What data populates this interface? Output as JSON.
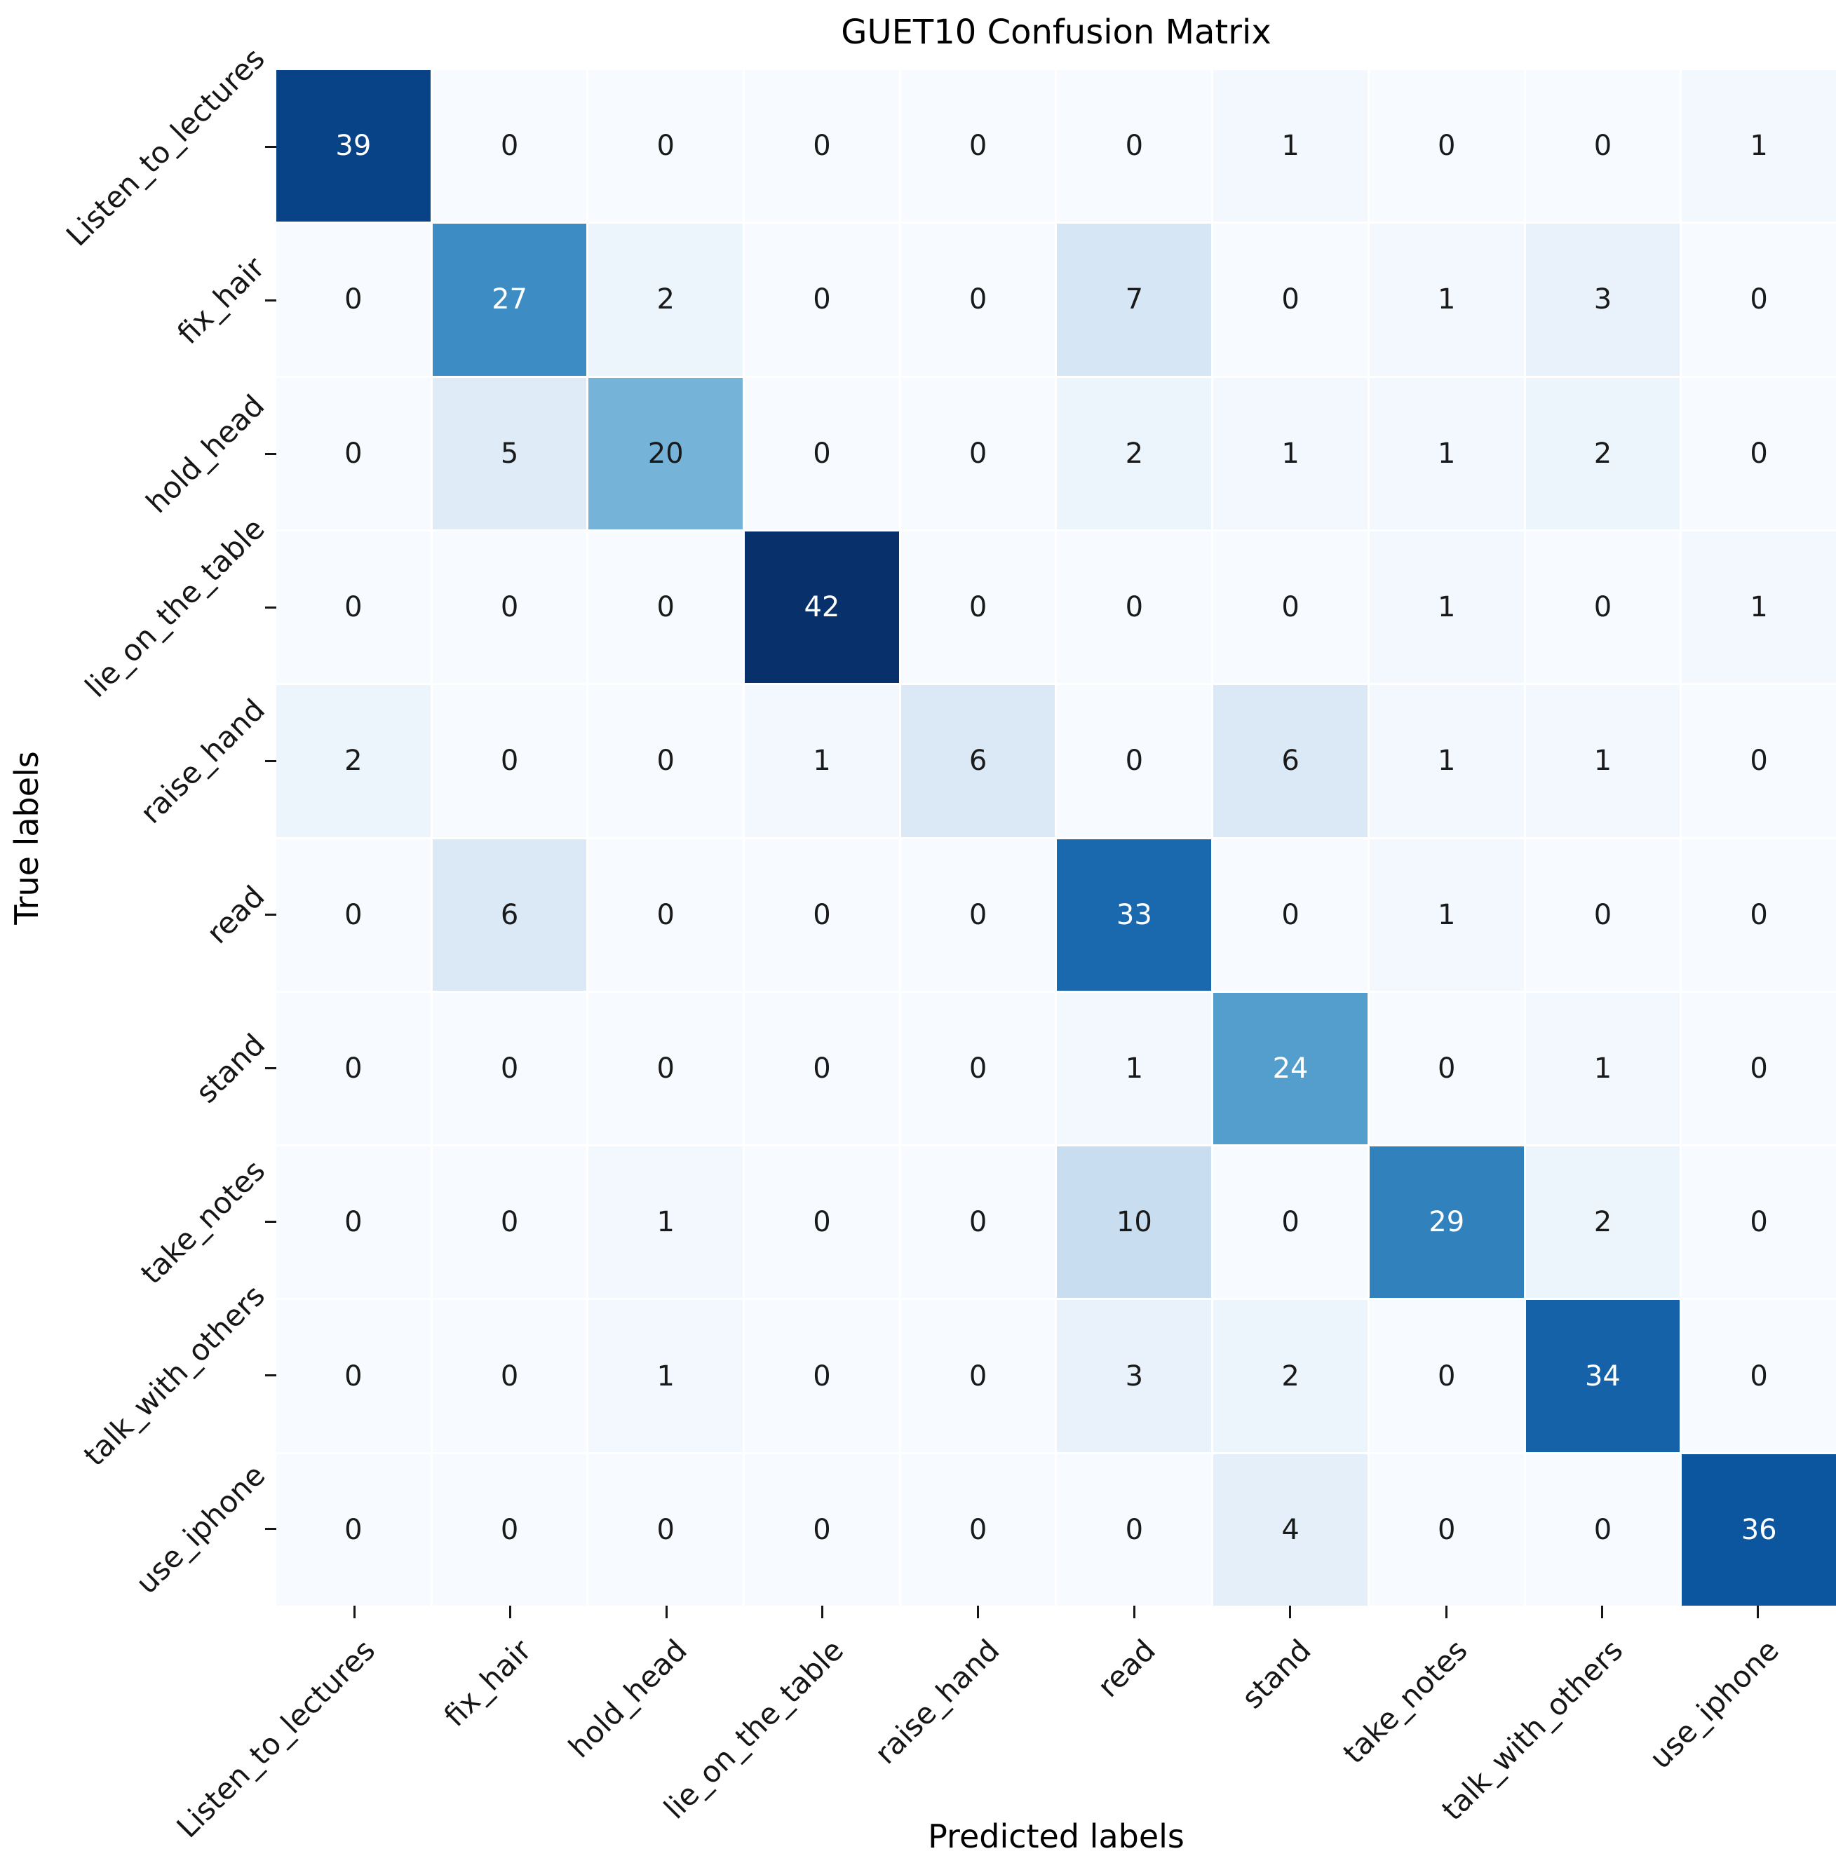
{
  "chart_data": {
    "type": "heatmap",
    "title": "GUET10 Confusion Matrix",
    "xlabel": "Predicted labels",
    "ylabel": "True labels",
    "categories": [
      "Listen_to_lectures",
      "fix_hair",
      "hold_head",
      "lie_on_the_table",
      "raise_hand",
      "read",
      "stand",
      "take_notes",
      "talk_with_others",
      "use_iphone"
    ],
    "matrix": [
      [
        39,
        0,
        0,
        0,
        0,
        0,
        1,
        0,
        0,
        1
      ],
      [
        0,
        27,
        2,
        0,
        0,
        7,
        0,
        1,
        3,
        0
      ],
      [
        0,
        5,
        20,
        0,
        0,
        2,
        1,
        1,
        2,
        0
      ],
      [
        0,
        0,
        0,
        42,
        0,
        0,
        0,
        1,
        0,
        1
      ],
      [
        2,
        0,
        0,
        1,
        6,
        0,
        6,
        1,
        1,
        0
      ],
      [
        0,
        6,
        0,
        0,
        0,
        33,
        0,
        1,
        0,
        0
      ],
      [
        0,
        0,
        0,
        0,
        0,
        1,
        24,
        0,
        1,
        0
      ],
      [
        0,
        0,
        1,
        0,
        0,
        10,
        0,
        29,
        2,
        0
      ],
      [
        0,
        0,
        1,
        0,
        0,
        3,
        2,
        0,
        34,
        0
      ],
      [
        0,
        0,
        0,
        0,
        0,
        0,
        4,
        0,
        0,
        36
      ]
    ],
    "vmin": 0,
    "vmax": 42,
    "colormap": "Blues",
    "colormap_stops": [
      [
        0.0,
        "#f7fbff"
      ],
      [
        0.125,
        "#deebf7"
      ],
      [
        0.25,
        "#c6dbef"
      ],
      [
        0.375,
        "#9ecae1"
      ],
      [
        0.5,
        "#6baed6"
      ],
      [
        0.625,
        "#4292c6"
      ],
      [
        0.75,
        "#2171b5"
      ],
      [
        0.875,
        "#08519c"
      ],
      [
        1.0,
        "#08306b"
      ]
    ],
    "annotation_color_light_cells": "#1a1a1a",
    "annotation_color_dark_cells": "#ffffff",
    "tick_color": "#161616",
    "grid": true,
    "legend": "none"
  }
}
